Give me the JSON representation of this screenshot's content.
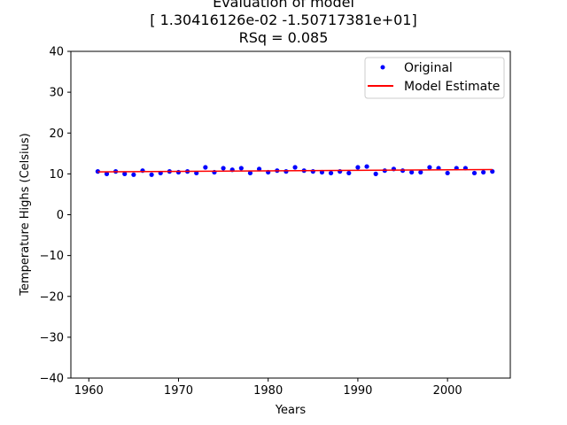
{
  "chart_data": {
    "type": "scatter",
    "title_lines": [
      "Evaluation of model",
      "[ 1.30416126e-02 -1.50717381e+01]",
      "RSq = 0.085"
    ],
    "xlabel": "Years",
    "ylabel": "Temperature Highs (Celsius)",
    "xlim": [
      1958,
      2007
    ],
    "ylim": [
      -40,
      40
    ],
    "xticks": [
      1960,
      1970,
      1980,
      1990,
      2000
    ],
    "yticks": [
      -40,
      -30,
      -20,
      -10,
      0,
      10,
      20,
      30,
      40
    ],
    "legend_position": "top-right",
    "series": [
      {
        "name": "Original",
        "kind": "points",
        "color": "#0000ff",
        "x": [
          1961,
          1962,
          1963,
          1964,
          1965,
          1966,
          1967,
          1968,
          1969,
          1970,
          1971,
          1972,
          1973,
          1974,
          1975,
          1976,
          1977,
          1978,
          1979,
          1980,
          1981,
          1982,
          1983,
          1984,
          1985,
          1986,
          1987,
          1988,
          1989,
          1990,
          1991,
          1992,
          1993,
          1994,
          1995,
          1996,
          1997,
          1998,
          1999,
          2000,
          2001,
          2002,
          2003,
          2004,
          2005
        ],
        "y": [
          10.6,
          10.0,
          10.6,
          10.0,
          9.8,
          10.8,
          9.8,
          10.2,
          10.6,
          10.4,
          10.6,
          10.2,
          11.6,
          10.4,
          11.4,
          11.0,
          11.4,
          10.2,
          11.2,
          10.4,
          10.8,
          10.6,
          11.6,
          10.8,
          10.6,
          10.4,
          10.2,
          10.6,
          10.2,
          11.6,
          11.8,
          10.0,
          10.8,
          11.2,
          10.8,
          10.4,
          10.4,
          11.6,
          11.4,
          10.2,
          11.4,
          11.4,
          10.2,
          10.4,
          10.6
        ]
      },
      {
        "name": "Model Estimate",
        "kind": "line",
        "color": "#ff0000",
        "x": [
          1961,
          2005
        ],
        "y": [
          10.5,
          11.07
        ]
      }
    ]
  }
}
